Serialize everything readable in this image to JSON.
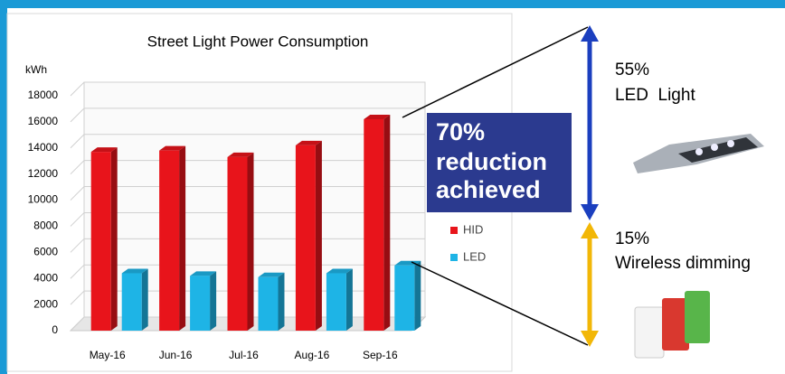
{
  "chart_data": {
    "type": "bar",
    "title": "Street Light Power Consumption",
    "y_label": "kWh",
    "categories": [
      "May-16",
      "Jun-16",
      "Jul-16",
      "Aug-16",
      "Sep-16"
    ],
    "series": [
      {
        "name": "HID",
        "color": "#e8141b",
        "values": [
          13700,
          13800,
          13300,
          14200,
          16200
        ]
      },
      {
        "name": "LED",
        "color": "#1eb4e6",
        "values": [
          4400,
          4200,
          4100,
          4400,
          5000
        ]
      }
    ],
    "ylim": [
      0,
      18000
    ],
    "yticks": [
      0,
      2000,
      4000,
      6000,
      8000,
      10000,
      12000,
      14000,
      16000,
      18000
    ],
    "grid": true,
    "legend": "right",
    "annotation": {
      "lines": [
        "70%",
        "reduction",
        "achieved"
      ]
    }
  },
  "callouts": {
    "led": {
      "percent": "55%",
      "label": "LED  Light"
    },
    "dimming": {
      "percent": "15%",
      "label": "Wireless dimming"
    }
  }
}
